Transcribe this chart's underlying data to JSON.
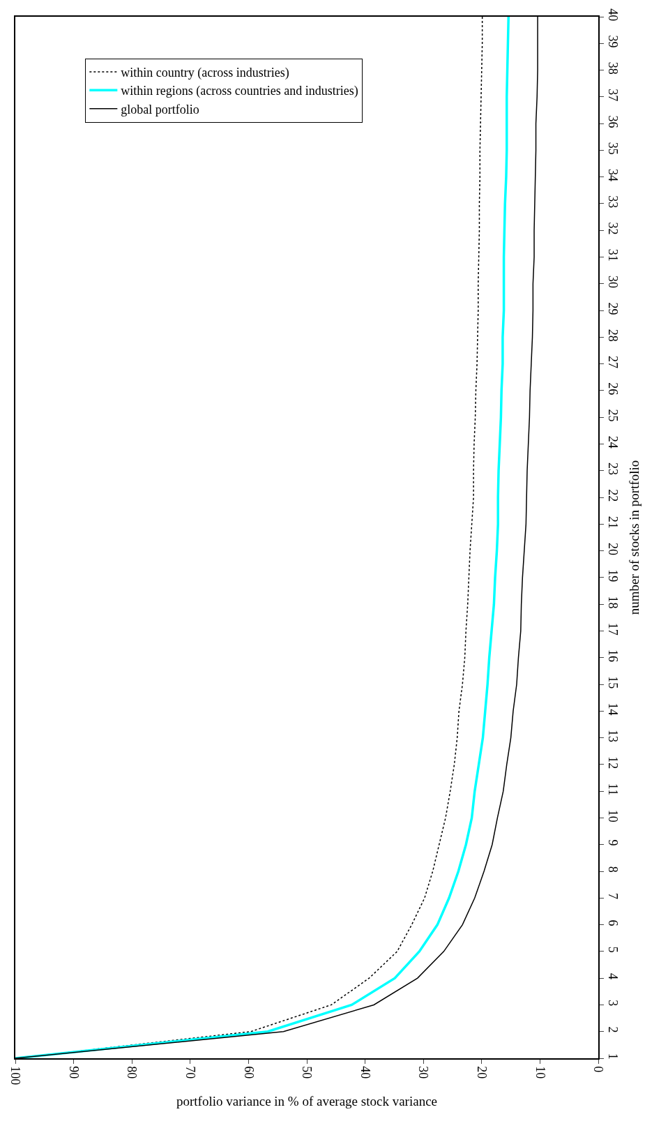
{
  "chart_data": {
    "type": "line",
    "orientation": "horizontal",
    "xlabel": "portfolio variance in % of average stock variance",
    "ylabel": "number of stocks in portfolio",
    "categories": [
      "40",
      "39",
      "38",
      "37",
      "36",
      "35",
      "34",
      "33",
      "32",
      "31",
      "30",
      "29",
      "28",
      "27",
      "26",
      "25",
      "24",
      "23",
      "22",
      "21",
      "20",
      "19",
      "18",
      "17",
      "16",
      "15",
      "14",
      "13",
      "12",
      "11",
      "10",
      "9",
      "8",
      "7",
      "6",
      "5",
      "4",
      "3",
      "2",
      "1"
    ],
    "xlim": [
      100,
      0
    ],
    "xticks": [
      0,
      10,
      20,
      30,
      40,
      50,
      60,
      70,
      80,
      90,
      100
    ],
    "grid": false,
    "legend": "top left",
    "series": [
      {
        "name": "within country (across industries)",
        "color": "#000000",
        "line_style": "dotted",
        "values": [
          19.9,
          19.9,
          20.0,
          20.1,
          20.2,
          20.3,
          20.3,
          20.4,
          20.4,
          20.5,
          20.6,
          20.6,
          20.7,
          20.8,
          21.0,
          21.1,
          21.3,
          21.4,
          21.4,
          21.7,
          22.0,
          22.2,
          22.4,
          22.7,
          22.9,
          23.3,
          23.9,
          24.2,
          24.7,
          25.4,
          26.2,
          27.3,
          28.4,
          29.8,
          32,
          34.5,
          39.3,
          45.8,
          59.6,
          100
        ]
      },
      {
        "name": "within regions (across countries and industries)",
        "color": "#00ffff",
        "line_style": "solid",
        "values": [
          15.4,
          15.5,
          15.6,
          15.7,
          15.7,
          15.7,
          15.8,
          16.0,
          16.1,
          16.2,
          16.2,
          16.2,
          16.4,
          16.4,
          16.6,
          16.7,
          16.9,
          17.1,
          17.2,
          17.2,
          17.4,
          17.7,
          17.9,
          18.3,
          18.7,
          19.0,
          19.4,
          19.8,
          20.5,
          21.2,
          21.7,
          22.7,
          24,
          25.6,
          27.6,
          30.7,
          34.9,
          42.3,
          56.7,
          100
        ]
      },
      {
        "name": "global portfolio",
        "color": "#000000",
        "line_style": "solid",
        "values": [
          10.4,
          10.4,
          10.4,
          10.5,
          10.7,
          10.7,
          10.8,
          10.9,
          11.0,
          11.0,
          11.2,
          11.2,
          11.3,
          11.5,
          11.7,
          11.8,
          12.0,
          12.2,
          12.3,
          12.4,
          12.7,
          13.0,
          13.2,
          13.3,
          13.7,
          14.0,
          14.6,
          15.0,
          15.7,
          16.3,
          17.3,
          18.2,
          19.6,
          21.2,
          23.3,
          26.5,
          31,
          38.5,
          54,
          100
        ]
      }
    ]
  }
}
